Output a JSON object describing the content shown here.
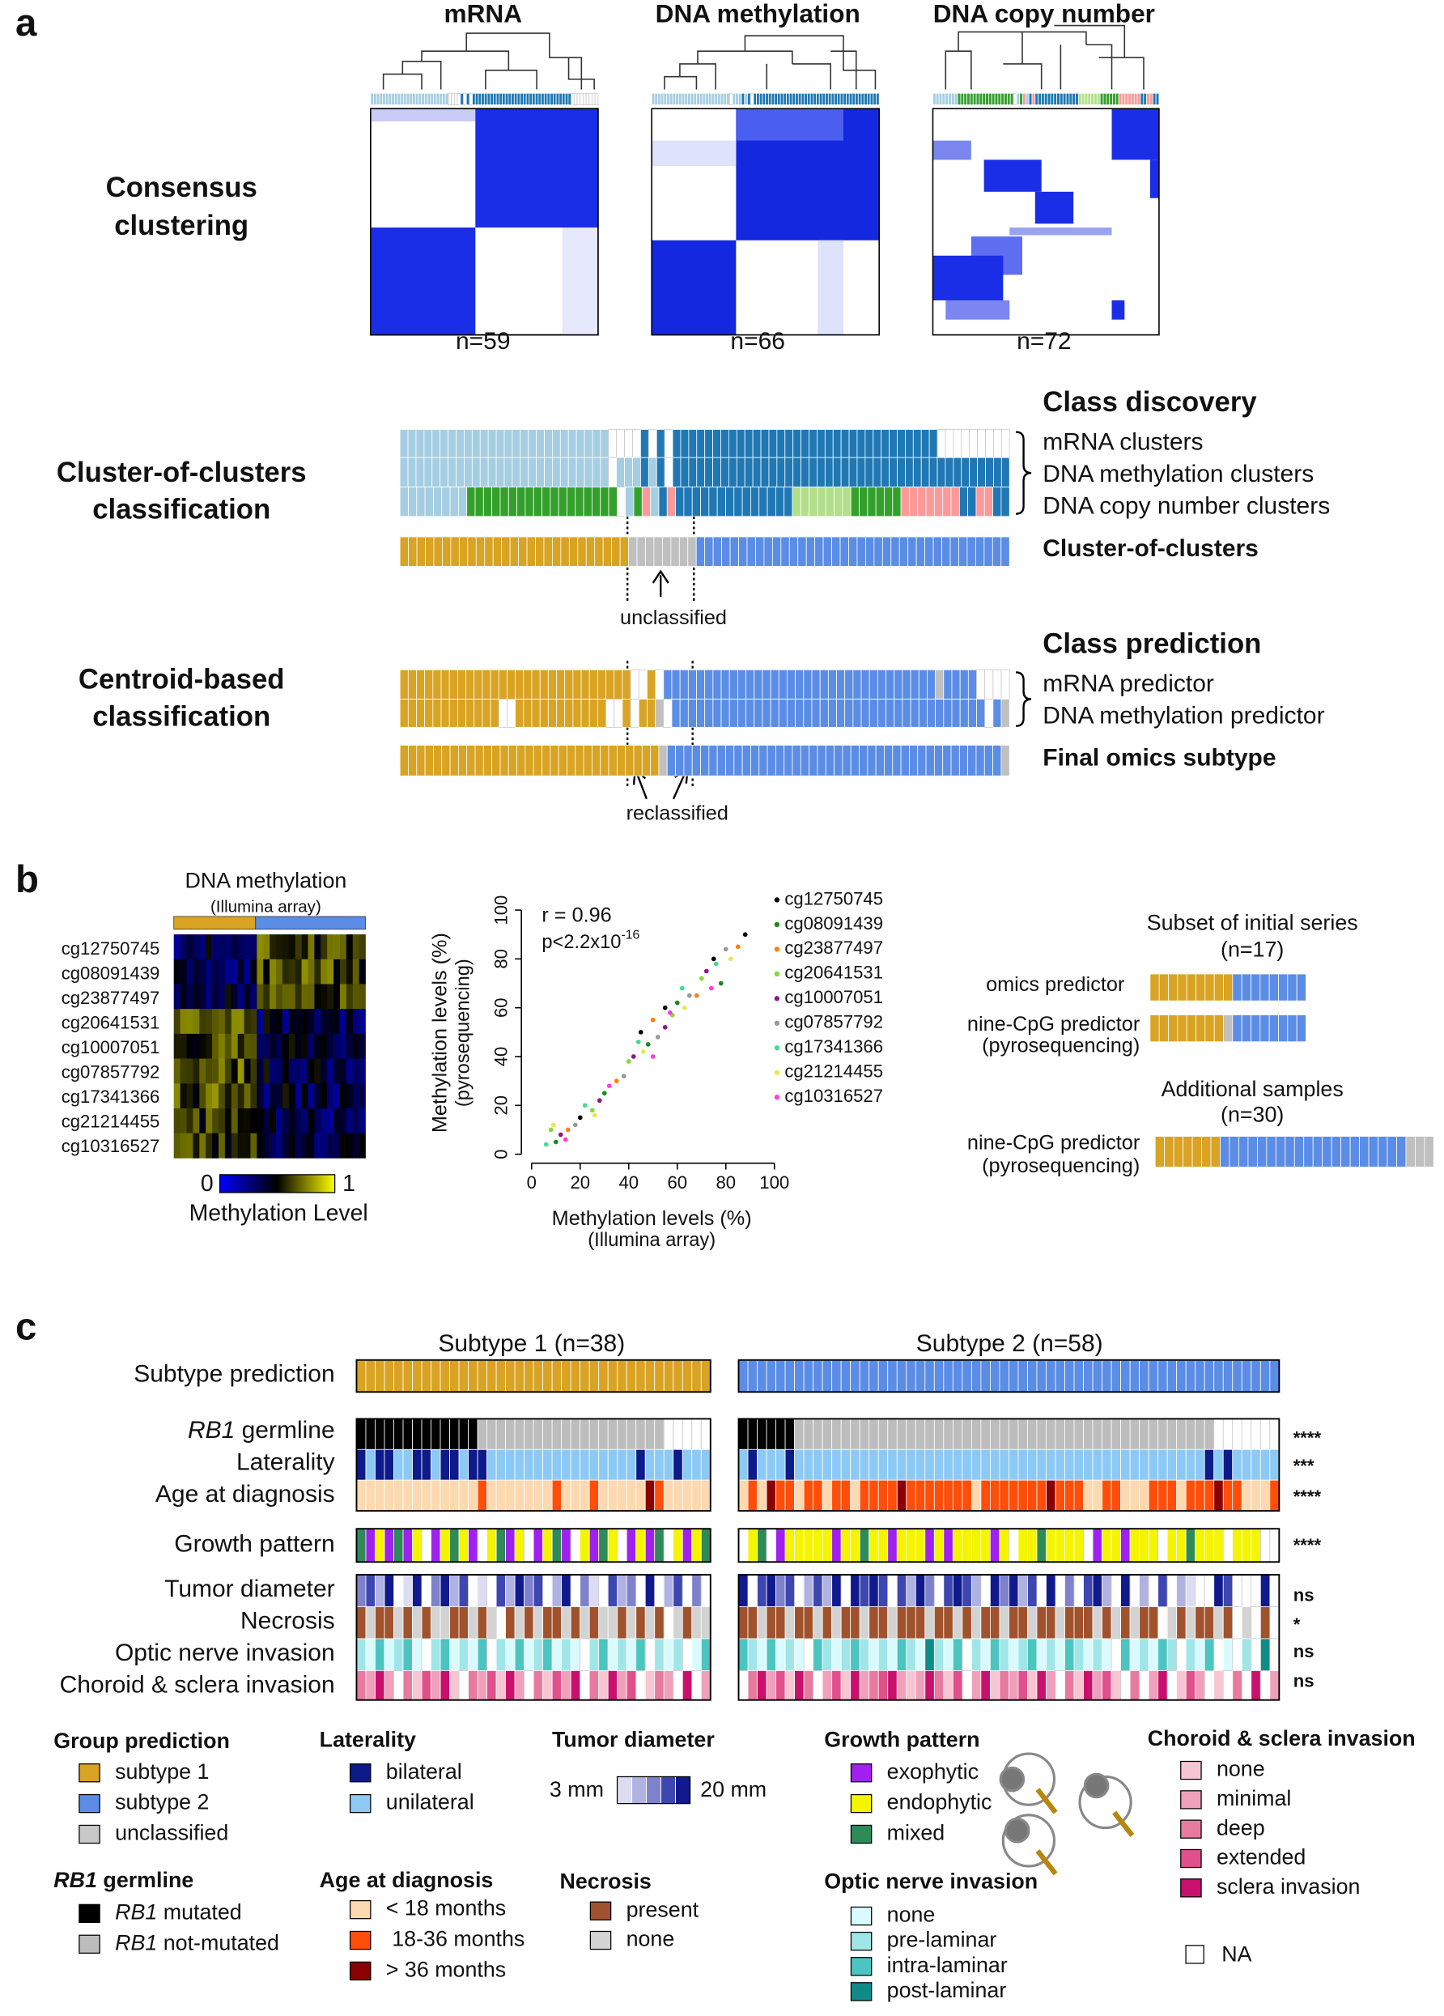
{
  "panel_a": {
    "label": "a",
    "matrices": [
      {
        "title": "mRNA",
        "n": "n=59"
      },
      {
        "title": "DNA methylation",
        "n": "n=66"
      },
      {
        "title": "DNA copy number",
        "n": "n=72"
      }
    ],
    "section_titles": [
      [
        "Consensus",
        "clustering"
      ],
      [
        "Cluster-of-clusters",
        "classification"
      ],
      [
        "Centroid-based",
        "classification"
      ]
    ],
    "class_discovery": "Class discovery",
    "class_prediction": "Class prediction",
    "unclassified": "unclassified",
    "reclassified": "reclassified",
    "palette": {
      "L": "#a6cee3",
      "D": "#1f78b4",
      "W": "#ffffff",
      "H": "#b2df8a",
      "G": "#33a02c",
      "P": "#fb9a99",
      "O": "#d9a323",
      "B": "#5b8de6",
      "Y": "#c0c0c0"
    },
    "tracks": [
      {
        "label": "mRNA clusters",
        "cells": "LLLLLLLLLLLLLLLLLLLLLLLLLLWWWWDWDWDDDDDDDDDDDDDDDDDDDDDDDDDDDDDDDDDWWWWWWWWW"
      },
      {
        "label": "DNA methylation clusters",
        "cells": "LLLLLLLLLLLLLLLLLLLLLLLLLLWLLLDLDWDDDDDDDDDDDDDDDDDDDDDDDDDDDDDDDDDDDDDDDDDD"
      },
      {
        "label": "DNA copy number clusters",
        "cells": "LLLLLLLLGGGGGGGGGGGGGGGGGGWLGPLDPDDDDDDDDDDDDDDHHHHHHHGGGGGGPPPPPPPDDPPDD"
      },
      {
        "label": "Cluster-of-clusters",
        "cells": "OOOOOOOOOOOOOOOOOOOOOOOOOOOYYYYYYYYBBBBBBBBBBBBBBBBBBBBBBBBBBBBBBBBBBBBB"
      },
      {
        "label": "mRNA predictor",
        "cells": "OOOOOOOOOOOOOOOOOOOOOOOOOOOOWWOWBBBBBBBBBBBBBBBBBBBBBBBBBBBBBBBBBYBBBBWWWW"
      },
      {
        "label": "DNA methylation predictor",
        "cells": "OOOOOOOOOOOOWWOOOOOOOOOOOWWOWOOYWBBBBBBBBBBBBBBBBBBBBBBBBBBBBBBBBBBBBBBWBY"
      },
      {
        "label": "Final omics subtype",
        "cells": "OOOOOOOOOOOOOOOOOOOOOOOOOOOOOOOYBBBBBBBBBBBBBBBBBBBBBBBBBBBBBBBBBBBBBBBBY"
      }
    ]
  },
  "panel_b": {
    "label": "b",
    "heatmap": {
      "title": "DNA methylation",
      "subtitle": "(Illumina array)",
      "rows": [
        "cg12750745",
        "cg08091439",
        "cg23877497",
        "cg20641531",
        "cg10007051",
        "cg07857792",
        "cg17341366",
        "cg21214455",
        "cg10316527"
      ],
      "colorbar_range": [
        0,
        1
      ],
      "colorbar_label": "Methylation Level",
      "colorbar_colors": [
        "#0000ff",
        "#000000",
        "#ffff00"
      ]
    },
    "validation": {
      "subset_title": "Subset of initial series",
      "subset_n": "(n=17)",
      "additional_title": "Additional samples",
      "additional_n": "(n=30)",
      "palette": {
        "O": "#d9a323",
        "B": "#5b8de6",
        "Y": "#c0c0c0"
      },
      "bars": [
        {
          "label": [
            "omics predictor"
          ],
          "cells": "OOOOOOOOOBBBBBBBB"
        },
        {
          "label": [
            "nine-CpG predictor",
            "(pyrosequencing)"
          ],
          "cells": "OOOOOOOOYBBBBBBBB"
        },
        {
          "label": [
            "nine-CpG predictor",
            "(pyrosequencing)"
          ],
          "cells": "OOOOOOOBBBBBBBBBBBBBBBBBBBBYYY"
        }
      ]
    }
  },
  "chart_data": {
    "type": "scatter",
    "xlabel": [
      "Methylation levels (%)",
      "(Illumina array)"
    ],
    "ylabel": [
      "Methylation levels (%)",
      "(pyrosequencing)"
    ],
    "annotations": {
      "r": "r = 0.96",
      "p": "p<2.2x10",
      "p_exp": "-16"
    },
    "xlim": [
      0,
      100
    ],
    "ylim": [
      0,
      100
    ],
    "xticks": [
      0,
      20,
      40,
      60,
      80,
      100
    ],
    "yticks": [
      0,
      20,
      40,
      60,
      80,
      100
    ],
    "series": [
      {
        "name": "cg12750745",
        "color": "#000000",
        "x": [
          20,
          45,
          55,
          75,
          88
        ],
        "y": [
          15,
          50,
          60,
          80,
          90
        ]
      },
      {
        "name": "cg08091439",
        "color": "#1a8a1a",
        "x": [
          10,
          30,
          48,
          60,
          78
        ],
        "y": [
          5,
          25,
          45,
          62,
          70
        ]
      },
      {
        "name": "cg23877497",
        "color": "#ff7f0e",
        "x": [
          15,
          35,
          50,
          68,
          85
        ],
        "y": [
          10,
          30,
          55,
          65,
          85
        ]
      },
      {
        "name": "cg20641531",
        "color": "#7fdc2e",
        "x": [
          8,
          25,
          40,
          58,
          70
        ],
        "y": [
          10,
          18,
          38,
          57,
          72
        ]
      },
      {
        "name": "cg10007051",
        "color": "#8b1a8b",
        "x": [
          12,
          28,
          42,
          55,
          72
        ],
        "y": [
          8,
          22,
          40,
          52,
          75
        ]
      },
      {
        "name": "cg07857792",
        "color": "#999999",
        "x": [
          18,
          38,
          52,
          65,
          80
        ],
        "y": [
          12,
          32,
          48,
          65,
          84
        ]
      },
      {
        "name": "cg17341366",
        "color": "#3de08a",
        "x": [
          6,
          22,
          44,
          62,
          76
        ],
        "y": [
          4,
          20,
          46,
          68,
          78
        ]
      },
      {
        "name": "cg21214455",
        "color": "#e8e84a",
        "x": [
          9,
          26,
          46,
          63,
          82
        ],
        "y": [
          12,
          16,
          42,
          60,
          80
        ]
      },
      {
        "name": "cg10316527",
        "color": "#ff3dd8",
        "x": [
          14,
          32,
          50,
          57,
          74
        ],
        "y": [
          6,
          28,
          40,
          58,
          68
        ]
      }
    ]
  },
  "panel_c": {
    "label": "c",
    "groups": [
      "Subtype 1 (n=38)",
      "Subtype 2 (n=58)"
    ],
    "tracks": [
      {
        "label": "Subtype prediction",
        "palette": {
          "O": "#d9a323",
          "B": "#5b8de6"
        },
        "s1": "OOOOOOOOOOOOOOOOOOOOOOOOOOOOOOOOOOOOOO",
        "s2": "BBBBBBBBBBBBBBBBBBBBBBBBBBBBBBBBBBBBBBBBBBBBBBBBBBBBBBBBBB"
      },
      {
        "label": {
          "italic": "RB1",
          "text": " germline"
        },
        "sig": "****",
        "palette": {
          "K": "#000000",
          "Y": "#bdbdbd",
          "W": "#ffffff"
        },
        "s1": "KKKKKKKKKKKKKYYYYYYYYYYYYYYYYYYYYWWWWW",
        "s2": "KKKKKKYYYYYYYYYYYYYYYYYYYYYYYYYYYYYYYYYYYYYYYYYYYYYWWWWWWW"
      },
      {
        "label": "Laterality",
        "sig": "***",
        "palette": {
          "N": "#0d1a8a",
          "U": "#8ccaf5"
        },
        "s1": "NUNNUUNNUNNUNNUUUUUUUUUUUUUUUUNUUUNUUU",
        "s2": "UNUUUNUUUUUUUUUUUUUUUUUUUUUUUUUUUUUUUUUUUUUUUUUUUUNUNUUUUU"
      },
      {
        "label": "Age at diagnosis",
        "sig": "****",
        "palette": {
          "A": "#fcd9b0",
          "R": "#ff4e0a",
          "M": "#8b0000"
        },
        "s1": "AAAAAAAAAAAAARAAAAAAARAAARAAAAAMRAAAAA",
        "s2": "ARAMRRARRARRARRRRMRRRRRRRARRRRRRRMRRRAARRAAARRRARRRMRRAAAR"
      },
      {
        "label": "Growth pattern",
        "sig": "****",
        "palette": {
          "P": "#a020f0",
          "E": "#f5f500",
          "G": "#2e8b57",
          "W": "#ffffff"
        },
        "s1": "GPEPGPEWPEGEPWEGPEWPEGPWEPGEWPEPGWEPEG",
        "s2": "WEGWPEEEEEPEEGEEPEEEPEPEEEEPEWEEGEEEEWPEEPEEEWEEGEEEWEEEWW"
      },
      {
        "label": "Tumor diameter",
        "sig": "ns",
        "palette": {
          "1": "#dcdcf2",
          "2": "#b0b2e2",
          "3": "#7e82cc",
          "4": "#3e46b0",
          "5": "#101a8c",
          "W": "#ffffff"
        },
        "s1": "3425W15W3524W1W42534W25W31W423W5W24W3W",
        "s2": "5W4534W2425W5454W4253W4542W53524W5W3W452W5W2W4W21WW54WWW5W"
      },
      {
        "label": "Necrosis",
        "sig": "*",
        "palette": {
          "X": "#a0522d",
          "Y": "#d3d3d3",
          "W": "#ffffff"
        },
        "s1": "XYXXYXYXYYXXYXYWXYXYXXYXYXYYXYXYXWYXYY",
        "s2": "XXYXXYXXYXYXXYXXYXXXYXXYXYXXYXXYXXYXXXYXYXYXXWYXYXXYXWYWXW"
      },
      {
        "label": "Optic nerve invasion",
        "sig": "ns",
        "palette": {
          "1": "#d9fbff",
          "2": "#a0e6e8",
          "3": "#4cc4c0",
          "4": "#108a86",
          "W": "#ffffff"
        },
        "s1": "2131231W231213W213123121W231213W212W13",
        "s2": "3213121W3212321213214213W213212312132121W312132W213W1W2W4W"
      },
      {
        "label": "Choroid & sclera invasion",
        "sig": "ns",
        "palette": {
          "1": "#f8c6d2",
          "2": "#f0a0bb",
          "3": "#e8799f",
          "4": "#e0508a",
          "5": "#c8106c",
          "W": "#ffffff"
        },
        "s1": "3252W314251W324152W31425W31524W132W5W2",
        "s2": "W3524153W241523452125314W251324152W315241W3W25W142W1W3W5W2"
      }
    ],
    "legends": {
      "group": {
        "title": "Group prediction",
        "items": [
          {
            "label": "subtype 1",
            "color": "#d9a323"
          },
          {
            "label": "subtype 2",
            "color": "#5b8de6"
          },
          {
            "label": "unclassified",
            "color": "#c8c8c8"
          }
        ]
      },
      "rb1": {
        "title": {
          "italic": "RB1",
          "text": " germline"
        },
        "items": [
          {
            "label": {
              "italic": "RB1",
              "text": " mutated"
            },
            "color": "#000000"
          },
          {
            "label": {
              "italic": "RB1",
              "text": " not-mutated"
            },
            "color": "#bdbdbd"
          }
        ]
      },
      "laterality": {
        "title": "Laterality",
        "items": [
          {
            "label": "bilateral",
            "color": "#0d1a8a"
          },
          {
            "label": "unilateral",
            "color": "#8ccaf5"
          }
        ]
      },
      "age": {
        "title": "Age at diagnosis",
        "items": [
          {
            "label": "< 18 months",
            "color": "#fcd9b0"
          },
          {
            "label": " 18-36 months",
            "color": "#ff4e0a"
          },
          {
            "label": "> 36 months",
            "color": "#8b0000"
          }
        ]
      },
      "tumor": {
        "title": "Tumor diameter",
        "min": "3 mm",
        "max": "20 mm",
        "colors": [
          "#dcdcf2",
          "#b0b2e2",
          "#7e82cc",
          "#3e46b0",
          "#101a8c"
        ]
      },
      "necrosis": {
        "title": "Necrosis",
        "items": [
          {
            "label": "present",
            "color": "#a0522d"
          },
          {
            "label": "none",
            "color": "#d3d3d3"
          }
        ]
      },
      "growth": {
        "title": "Growth pattern",
        "items": [
          {
            "label": "exophytic",
            "color": "#a020f0"
          },
          {
            "label": "endophytic",
            "color": "#f5f500"
          },
          {
            "label": "mixed",
            "color": "#2e8b57"
          }
        ]
      },
      "optic": {
        "title": "Optic nerve invasion",
        "items": [
          {
            "label": "none",
            "color": "#d9fbff"
          },
          {
            "label": "pre-laminar",
            "color": "#a0e6e8"
          },
          {
            "label": "intra-laminar",
            "color": "#4cc4c0"
          },
          {
            "label": "post-laminar",
            "color": "#108a86"
          }
        ]
      },
      "choroid": {
        "title": "Choroid & sclera invasion",
        "items": [
          {
            "label": "none",
            "color": "#f8c6d2"
          },
          {
            "label": "minimal",
            "color": "#f0a0bb"
          },
          {
            "label": "deep",
            "color": "#e8799f"
          },
          {
            "label": "extended",
            "color": "#e0508a"
          },
          {
            "label": "sclera invasion",
            "color": "#c8106c"
          }
        ]
      },
      "na": {
        "title": "NA",
        "color": "#ffffff"
      }
    }
  }
}
